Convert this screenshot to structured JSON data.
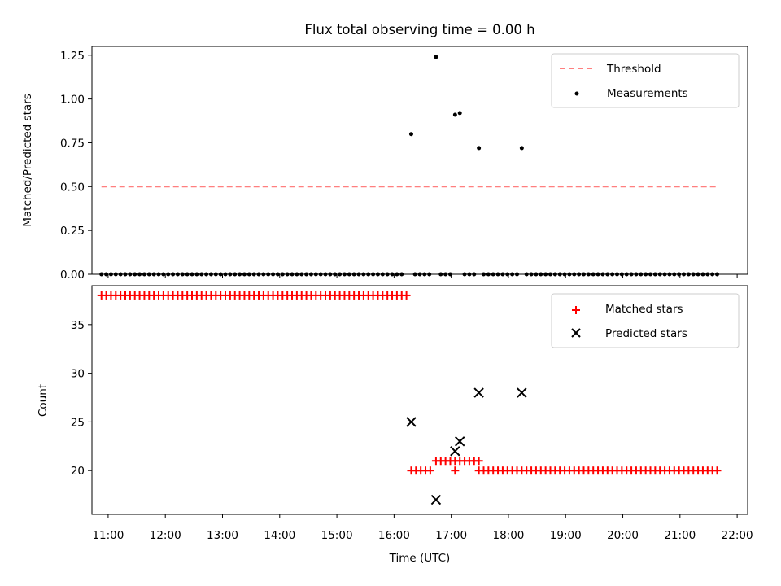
{
  "title": "Flux total observing time = 0.00 h",
  "chart_data": [
    {
      "type": "scatter",
      "ylabel": "Matched/Predicted stars",
      "ylim": [
        0,
        1.3
      ],
      "xlim": [
        "10:43",
        "22:11"
      ],
      "yticks": [
        0.0,
        0.25,
        0.5,
        0.75,
        1.0,
        1.25
      ],
      "ytick_labels": [
        "0.00",
        "0.25",
        "0.50",
        "0.75",
        "1.00",
        "1.25"
      ],
      "legend": [
        {
          "label": "Threshold",
          "style": "dashed-line",
          "color": "#ff7f7f"
        },
        {
          "label": "Measurements",
          "style": "dot",
          "color": "#000000"
        }
      ],
      "legend_position": "top-right",
      "threshold": {
        "y": 0.5,
        "x_start": "10:53",
        "x_end": "21:40"
      },
      "series": [
        {
          "name": "Measurements",
          "color": "#000000",
          "points": [
            {
              "x": "16:18",
              "y": 0.8
            },
            {
              "x": "16:44",
              "y": 1.24
            },
            {
              "x": "17:04",
              "y": 0.91
            },
            {
              "x": "17:09",
              "y": 0.92
            },
            {
              "x": "17:29",
              "y": 0.72
            },
            {
              "x": "18:14",
              "y": 0.72
            }
          ],
          "zero_runs": [
            {
              "start": "10:53",
              "end": "16:10",
              "step_min": 5
            },
            {
              "start": "16:22",
              "end": "16:40",
              "step_min": 5
            },
            {
              "start": "16:49",
              "end": "16:59",
              "step_min": 5
            },
            {
              "start": "17:14",
              "end": "17:24",
              "step_min": 5
            },
            {
              "start": "17:34",
              "end": "18:09",
              "step_min": 5
            },
            {
              "start": "18:19",
              "end": "21:40",
              "step_min": 5
            }
          ]
        }
      ]
    },
    {
      "type": "scatter",
      "xlabel": "Time (UTC)",
      "ylabel": "Count",
      "ylim": [
        15.5,
        39
      ],
      "xlim": [
        "10:43",
        "22:11"
      ],
      "yticks": [
        20,
        25,
        30,
        35
      ],
      "ytick_labels": [
        "20",
        "25",
        "30",
        "35"
      ],
      "xticks": [
        "11:00",
        "12:00",
        "13:00",
        "14:00",
        "15:00",
        "16:00",
        "17:00",
        "18:00",
        "19:00",
        "20:00",
        "21:00",
        "22:00"
      ],
      "legend": [
        {
          "label": "Matched stars",
          "style": "plus",
          "color": "#ff0000"
        },
        {
          "label": "Predicted stars",
          "style": "x",
          "color": "#000000"
        }
      ],
      "legend_position": "top-right",
      "series": [
        {
          "name": "Matched stars",
          "color": "#ff0000",
          "runs": [
            {
              "start": "10:53",
              "end": "16:13",
              "step_min": 5,
              "y": 38
            },
            {
              "start": "16:18",
              "end": "16:40",
              "step_min": 5,
              "y": 20
            },
            {
              "start": "16:44",
              "end": "17:29",
              "step_min": 5,
              "y": 21
            },
            {
              "start": "17:29",
              "end": "21:43",
              "step_min": 5,
              "y": 20
            }
          ],
          "points": [
            {
              "x": "17:04",
              "y": 20
            }
          ]
        },
        {
          "name": "Predicted stars",
          "color": "#000000",
          "points": [
            {
              "x": "16:18",
              "y": 25
            },
            {
              "x": "16:44",
              "y": 17
            },
            {
              "x": "17:04",
              "y": 22
            },
            {
              "x": "17:09",
              "y": 23
            },
            {
              "x": "17:29",
              "y": 28
            },
            {
              "x": "18:14",
              "y": 28
            }
          ]
        }
      ]
    }
  ]
}
